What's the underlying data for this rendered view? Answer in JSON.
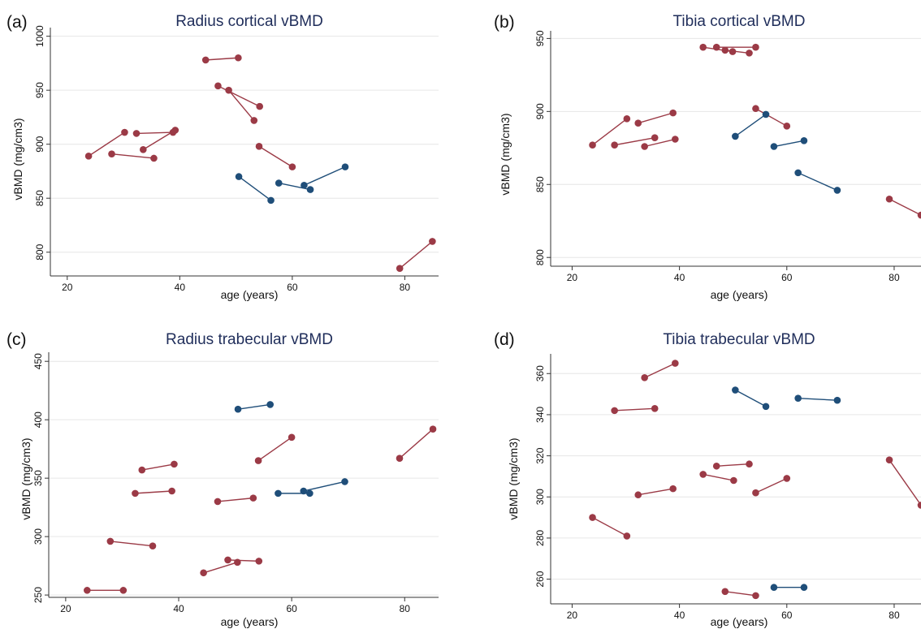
{
  "colors": {
    "young": "#9b3a46",
    "old": "#1f4e79",
    "title": "#1f2d5a",
    "grid": "#e6e6e6"
  },
  "chart_data": [
    {
      "panel": "a",
      "label": "(a)",
      "type": "scatter",
      "title": "Radius cortical vBMD",
      "xlabel": "age (years)",
      "ylabel": "vBMD (mg/cm3)",
      "xlim": [
        17,
        86
      ],
      "ylim": [
        778,
        1005
      ],
      "xticks": [
        "20",
        "40",
        "60",
        "80"
      ],
      "yticks": [
        "800",
        "850",
        "900",
        "950",
        "1000"
      ],
      "grid": true,
      "series": [
        {
          "group": "young",
          "x": [
            23.8,
            30.2
          ],
          "y": [
            889,
            911
          ]
        },
        {
          "group": "young",
          "x": [
            32.3,
            38.8
          ],
          "y": [
            910,
            911
          ]
        },
        {
          "group": "young",
          "x": [
            33.5,
            39.2
          ],
          "y": [
            895,
            913
          ]
        },
        {
          "group": "young",
          "x": [
            27.9,
            35.4
          ],
          "y": [
            891,
            887
          ]
        },
        {
          "group": "young",
          "x": [
            44.6,
            50.4
          ],
          "y": [
            978,
            980
          ]
        },
        {
          "group": "young",
          "x": [
            46.8,
            54.2
          ],
          "y": [
            954,
            935
          ]
        },
        {
          "group": "young",
          "x": [
            48.7,
            53.2
          ],
          "y": [
            950,
            922
          ]
        },
        {
          "group": "young",
          "x": [
            54.1,
            60.0
          ],
          "y": [
            898,
            879
          ]
        },
        {
          "group": "young",
          "x": [
            79.1,
            84.9
          ],
          "y": [
            785,
            810
          ]
        },
        {
          "group": "old",
          "x": [
            50.5,
            56.2
          ],
          "y": [
            870,
            848
          ]
        },
        {
          "group": "old",
          "x": [
            57.6,
            63.2
          ],
          "y": [
            864,
            858
          ]
        },
        {
          "group": "old",
          "x": [
            62.1,
            69.4
          ],
          "y": [
            862,
            879
          ]
        }
      ]
    },
    {
      "panel": "b",
      "label": "(b)",
      "type": "scatter",
      "title": "Tibia cortical vBMD",
      "xlabel": "age (years)",
      "ylabel": "vBMD (mg/cm3)",
      "xlim": [
        16,
        85
      ],
      "ylim": [
        794,
        953
      ],
      "xticks": [
        "20",
        "40",
        "60",
        "80"
      ],
      "yticks": [
        "800",
        "850",
        "900",
        "950"
      ],
      "grid": true,
      "series": [
        {
          "group": "young",
          "x": [
            23.8,
            30.2
          ],
          "y": [
            877,
            895
          ]
        },
        {
          "group": "young",
          "x": [
            32.3,
            38.8
          ],
          "y": [
            892,
            899
          ]
        },
        {
          "group": "young",
          "x": [
            27.9,
            35.4
          ],
          "y": [
            877,
            882
          ]
        },
        {
          "group": "young",
          "x": [
            33.5,
            39.2
          ],
          "y": [
            876,
            881
          ]
        },
        {
          "group": "young",
          "x": [
            44.4,
            49.9
          ],
          "y": [
            944,
            941
          ]
        },
        {
          "group": "young",
          "x": [
            46.9,
            54.2
          ],
          "y": [
            944,
            944
          ]
        },
        {
          "group": "young",
          "x": [
            48.5,
            53.0
          ],
          "y": [
            942,
            940
          ]
        },
        {
          "group": "young",
          "x": [
            54.2,
            60.0
          ],
          "y": [
            902,
            890
          ]
        },
        {
          "group": "young",
          "x": [
            79.1,
            85.0
          ],
          "y": [
            840,
            829
          ]
        },
        {
          "group": "old",
          "x": [
            50.4,
            56.1
          ],
          "y": [
            883,
            898
          ]
        },
        {
          "group": "old",
          "x": [
            57.6,
            63.2
          ],
          "y": [
            876,
            880
          ]
        },
        {
          "group": "old",
          "x": [
            62.1,
            69.4
          ],
          "y": [
            858,
            846
          ]
        }
      ]
    },
    {
      "panel": "c",
      "label": "(c)",
      "type": "scatter",
      "title": "Radius trabecular vBMD",
      "xlabel": "age (years)",
      "ylabel": "vBMD (mg/cm3)",
      "xlim": [
        17,
        86
      ],
      "ylim": [
        248,
        455
      ],
      "xticks": [
        "20",
        "40",
        "60",
        "80"
      ],
      "yticks": [
        "250",
        "300",
        "350",
        "400",
        "450"
      ],
      "grid": true,
      "series": [
        {
          "group": "young",
          "x": [
            23.8,
            30.2
          ],
          "y": [
            254,
            254
          ]
        },
        {
          "group": "young",
          "x": [
            27.9,
            35.4
          ],
          "y": [
            296,
            292
          ]
        },
        {
          "group": "young",
          "x": [
            32.3,
            38.8
          ],
          "y": [
            337,
            339
          ]
        },
        {
          "group": "young",
          "x": [
            33.5,
            39.2
          ],
          "y": [
            357,
            362
          ]
        },
        {
          "group": "young",
          "x": [
            44.4,
            50.4
          ],
          "y": [
            269,
            278
          ]
        },
        {
          "group": "young",
          "x": [
            48.7,
            54.2
          ],
          "y": [
            280,
            279
          ]
        },
        {
          "group": "young",
          "x": [
            46.9,
            53.2
          ],
          "y": [
            330,
            333
          ]
        },
        {
          "group": "young",
          "x": [
            54.1,
            60.0
          ],
          "y": [
            365,
            385
          ]
        },
        {
          "group": "young",
          "x": [
            79.1,
            85.0
          ],
          "y": [
            367,
            392
          ]
        },
        {
          "group": "old",
          "x": [
            50.5,
            56.2
          ],
          "y": [
            409,
            413
          ]
        },
        {
          "group": "old",
          "x": [
            57.6,
            63.2
          ],
          "y": [
            337,
            337
          ]
        },
        {
          "group": "old",
          "x": [
            62.1,
            69.4
          ],
          "y": [
            339,
            347
          ]
        }
      ]
    },
    {
      "panel": "d",
      "label": "(d)",
      "type": "scatter",
      "title": "Tibia trabecular vBMD",
      "xlabel": "age (years)",
      "ylabel": "vBMD (mg/cm3)",
      "xlim": [
        16,
        85
      ],
      "ylim": [
        248,
        368
      ],
      "xticks": [
        "20",
        "40",
        "60",
        "80"
      ],
      "yticks": [
        "260",
        "280",
        "300",
        "320",
        "340",
        "360"
      ],
      "grid": true,
      "series": [
        {
          "group": "young",
          "x": [
            23.8,
            30.2
          ],
          "y": [
            290,
            281
          ]
        },
        {
          "group": "young",
          "x": [
            27.9,
            35.4
          ],
          "y": [
            342,
            343
          ]
        },
        {
          "group": "young",
          "x": [
            33.5,
            39.2
          ],
          "y": [
            358,
            365
          ]
        },
        {
          "group": "young",
          "x": [
            32.3,
            38.8
          ],
          "y": [
            301,
            304
          ]
        },
        {
          "group": "young",
          "x": [
            44.4,
            50.1
          ],
          "y": [
            311,
            308
          ]
        },
        {
          "group": "young",
          "x": [
            46.9,
            53.0
          ],
          "y": [
            315,
            316
          ]
        },
        {
          "group": "young",
          "x": [
            54.2,
            60.0
          ],
          "y": [
            302,
            309
          ]
        },
        {
          "group": "young",
          "x": [
            48.5,
            54.2
          ],
          "y": [
            254,
            252
          ]
        },
        {
          "group": "young",
          "x": [
            79.1,
            85.0
          ],
          "y": [
            318,
            296
          ]
        },
        {
          "group": "old",
          "x": [
            50.4,
            56.1
          ],
          "y": [
            352,
            344
          ]
        },
        {
          "group": "old",
          "x": [
            62.1,
            69.4
          ],
          "y": [
            348,
            347
          ]
        },
        {
          "group": "old",
          "x": [
            57.6,
            63.2
          ],
          "y": [
            256,
            256
          ]
        }
      ]
    }
  ]
}
